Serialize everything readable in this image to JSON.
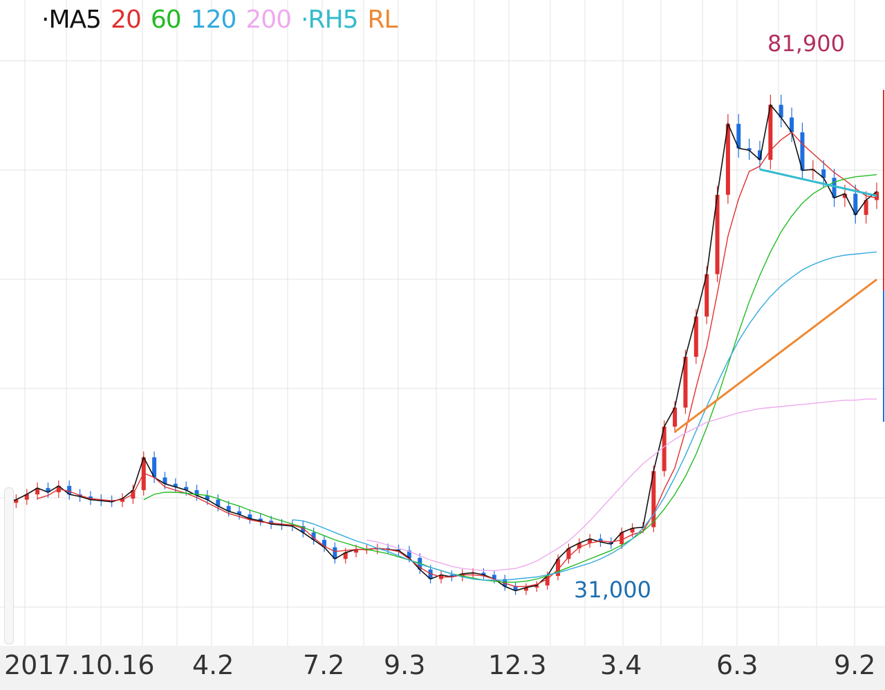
{
  "legend": {
    "items": [
      {
        "text": "·MA5",
        "color": "#111111"
      },
      {
        "text": "20",
        "color": "#e03030"
      },
      {
        "text": "60",
        "color": "#22bb22"
      },
      {
        "text": "120",
        "color": "#33aadd"
      },
      {
        "text": "200",
        "color": "#eeaaee"
      },
      {
        "text": "·RH5",
        "color": "#33bbcc"
      },
      {
        "text": "RL",
        "color": "#ee8833"
      }
    ]
  },
  "chart_data": {
    "type": "line",
    "x_tick_labels": [
      "2017.10.16",
      "4.2",
      "7.2",
      "9.3",
      "12.3",
      "3.4",
      "6.3",
      "9.2"
    ],
    "high_label": "81,900",
    "low_label": "31,000",
    "high_value": 81900,
    "low_value": 31000,
    "ylim": [
      28000,
      89000
    ],
    "grid": true,
    "candle_up_color": "#e03030",
    "candle_down_color": "#1e6fe0",
    "series": [
      {
        "key": "price",
        "color": "#111111",
        "values": [
          41500,
          41800,
          42300,
          42900,
          42500,
          43100,
          42300,
          42100,
          41800,
          41700,
          41600,
          41900,
          42700,
          45800,
          43900,
          43300,
          43000,
          42700,
          42200,
          41800,
          41200,
          40700,
          40400,
          40000,
          39800,
          39500,
          39400,
          39300,
          38700,
          38000,
          37300,
          36200,
          36800,
          37100,
          37100,
          37200,
          37100,
          37000,
          36300,
          35200,
          34300,
          34700,
          34500,
          34800,
          34900,
          34700,
          34300,
          33600,
          33200,
          33500,
          33700,
          34600,
          36200,
          37200,
          37700,
          38100,
          37800,
          37600,
          38700,
          39100,
          39200,
          44500,
          48700,
          50500,
          55300,
          59100,
          63100,
          70600,
          77300,
          75000,
          74800,
          73900,
          79100,
          77900,
          76500,
          72900,
          73000,
          72200,
          70300,
          70700,
          68700,
          70100,
          70900
        ]
      },
      {
        "key": "ma20",
        "color": "#e03030",
        "values": [
          null,
          null,
          null,
          41900,
          42200,
          42800,
          42600,
          42200,
          41900,
          41800,
          41700,
          41800,
          42300,
          44300,
          43900,
          43000,
          42700,
          42400,
          42000,
          41500,
          41000,
          40500,
          40200,
          39900,
          39700,
          39600,
          39500,
          39400,
          39100,
          38200,
          37400,
          36900,
          37000,
          37100,
          37100,
          37200,
          37100,
          36900,
          36200,
          35400,
          34800,
          34500,
          34500,
          34700,
          34700,
          34600,
          34300,
          33900,
          33600,
          33600,
          33800,
          34300,
          35200,
          36400,
          37300,
          37700,
          37900,
          37800,
          38000,
          38500,
          38800,
          40500,
          42800,
          44800,
          48300,
          52400,
          56200,
          61300,
          66700,
          70200,
          72800,
          73300,
          74800,
          75800,
          76500,
          75400,
          74500,
          73600,
          72700,
          72000,
          71200,
          70500,
          70300
        ]
      },
      {
        "key": "ma60",
        "color": "#22bb22",
        "values": [
          null,
          null,
          null,
          null,
          null,
          null,
          null,
          null,
          null,
          null,
          null,
          null,
          null,
          41800,
          42300,
          42500,
          42500,
          42400,
          42300,
          42200,
          41900,
          41500,
          41200,
          40800,
          40500,
          40100,
          39800,
          39500,
          39200,
          38800,
          38400,
          38000,
          37700,
          37400,
          37100,
          36900,
          36700,
          36400,
          36100,
          35800,
          35400,
          35100,
          34800,
          34600,
          34400,
          34200,
          34100,
          34000,
          34000,
          34100,
          34300,
          34600,
          35000,
          35400,
          35800,
          36200,
          36600,
          37000,
          37500,
          38100,
          38800,
          39700,
          40900,
          42300,
          44000,
          46100,
          48600,
          51400,
          54500,
          57600,
          60500,
          63000,
          65200,
          67100,
          68600,
          69800,
          70700,
          71300,
          71800,
          72100,
          72300,
          72400,
          72500
        ]
      },
      {
        "key": "ma120",
        "color": "#33aadd",
        "values": [
          null,
          null,
          null,
          null,
          null,
          null,
          null,
          null,
          null,
          null,
          null,
          null,
          null,
          null,
          null,
          null,
          null,
          null,
          null,
          null,
          null,
          null,
          null,
          null,
          null,
          null,
          null,
          39900,
          39800,
          39500,
          39100,
          38700,
          38300,
          37900,
          37600,
          37200,
          36900,
          36500,
          36100,
          35700,
          35400,
          35100,
          34800,
          34500,
          34300,
          34200,
          34200,
          34200,
          34300,
          34400,
          34500,
          34700,
          34900,
          35200,
          35500,
          35800,
          36200,
          36700,
          37300,
          38100,
          39100,
          40400,
          42000,
          43900,
          46000,
          48300,
          50600,
          52800,
          54900,
          56800,
          58400,
          59800,
          61000,
          62000,
          62800,
          63500,
          64000,
          64400,
          64700,
          64900,
          65000,
          65100,
          65200
        ]
      },
      {
        "key": "ma200",
        "color": "#eeaaee",
        "values": [
          null,
          null,
          null,
          null,
          null,
          null,
          null,
          null,
          null,
          null,
          null,
          null,
          null,
          null,
          null,
          null,
          null,
          null,
          null,
          null,
          null,
          null,
          null,
          null,
          null,
          null,
          null,
          null,
          null,
          null,
          null,
          null,
          null,
          null,
          38000,
          37800,
          37500,
          37200,
          36900,
          36500,
          36100,
          35800,
          35500,
          35300,
          35200,
          35100,
          35100,
          35200,
          35300,
          35600,
          36000,
          36600,
          37200,
          37900,
          38800,
          39800,
          40900,
          42000,
          43100,
          44200,
          45200,
          46000,
          46800,
          47500,
          48100,
          48600,
          49100,
          49400,
          49700,
          50000,
          50200,
          50400,
          50500,
          50600,
          50700,
          50800,
          50900,
          51000,
          51100,
          51200,
          51200,
          51300,
          51300
        ]
      },
      {
        "key": "rh5",
        "color": "#33bbcc",
        "values": []
      },
      {
        "key": "rl",
        "color": "#ee8833",
        "values": []
      }
    ],
    "trendlines": [
      {
        "key": "rh5",
        "color": "#33bbcc",
        "from": [
          71,
          73000
        ],
        "to": [
          82,
          70500
        ]
      },
      {
        "key": "rl",
        "color": "#ee8833",
        "from": [
          63,
          48200
        ],
        "to": [
          82,
          62600
        ]
      }
    ]
  }
}
